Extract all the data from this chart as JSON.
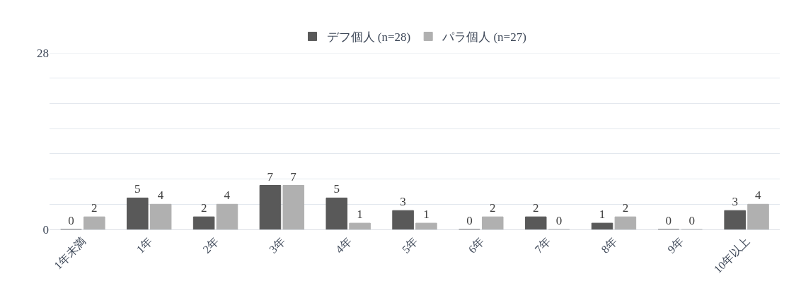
{
  "chart_data": {
    "type": "bar",
    "categories": [
      "1年未満",
      "1年",
      "2年",
      "3年",
      "4年",
      "5年",
      "6年",
      "7年",
      "8年",
      "9年",
      "10年以上"
    ],
    "series": [
      {
        "name": "デフ個人 (n=28)",
        "color": "#595959",
        "values": [
          0,
          5,
          2,
          7,
          5,
          3,
          0,
          2,
          1,
          0,
          3
        ]
      },
      {
        "name": "パラ個人 (n=27)",
        "color": "#b0b0b0",
        "values": [
          2,
          4,
          4,
          7,
          1,
          1,
          2,
          0,
          2,
          0,
          4
        ]
      }
    ],
    "ylim": [
      0,
      28
    ],
    "yticks": [
      0,
      {
        "value": 4,
        "label": null
      },
      {
        "value": 8,
        "label": null
      },
      {
        "value": 12,
        "label": null
      },
      {
        "value": 16,
        "label": null
      },
      {
        "value": 20,
        "label": null
      },
      {
        "value": 24,
        "label": null
      },
      28
    ],
    "grid": "y",
    "legend": "top",
    "data_labels": true
  }
}
